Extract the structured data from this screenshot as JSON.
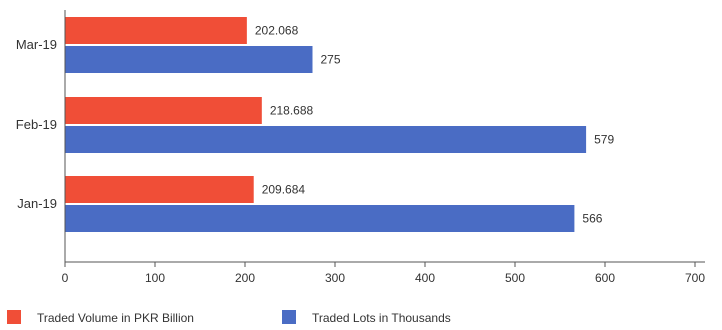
{
  "chart_data": {
    "type": "bar",
    "orientation": "horizontal",
    "categories": [
      "Mar-19",
      "Feb-19",
      "Jan-19"
    ],
    "series": [
      {
        "name": "Traded Volume in PKR Billion",
        "color": "#f04e37",
        "values": [
          202.068,
          218.688,
          209.684
        ],
        "labels": [
          "202.068",
          "218.688",
          "209.684"
        ]
      },
      {
        "name": "Traded Lots in Thousands",
        "color": "#4a6cc4",
        "values": [
          275,
          579,
          566
        ],
        "labels": [
          "275",
          "579",
          "566"
        ]
      }
    ],
    "xlim": [
      0,
      700
    ],
    "xticks": [
      0,
      100,
      200,
      300,
      400,
      500,
      600,
      700
    ],
    "grid": false,
    "legend": "bottom-left"
  }
}
